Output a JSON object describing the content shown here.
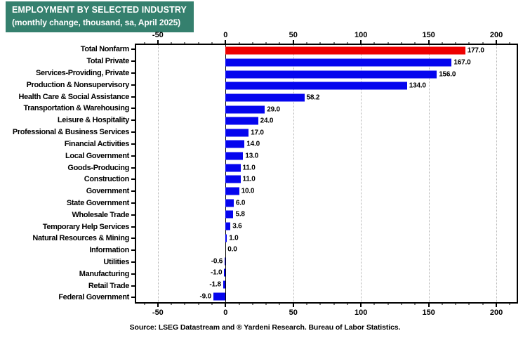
{
  "title": {
    "line1": "EMPLOYMENT BY SELECTED INDUSTRY",
    "line2": "(monthly change, thousand, sa, April 2025)",
    "bg_color": "#35806E",
    "text_color": "#FFFFFF"
  },
  "chart_data": {
    "type": "bar",
    "orientation": "horizontal",
    "title": "EMPLOYMENT BY SELECTED INDUSTRY",
    "subtitle": "(monthly change, thousand, sa, April 2025)",
    "categories": [
      "Total Nonfarm",
      "Total Private",
      "Services-Providing, Private",
      "Production & Nonsupervisory",
      "Health Care & Social Assistance",
      "Transportation & Warehousing",
      "Leisure & Hospitality",
      "Professional & Business Services",
      "Financial Activities",
      "Local Government",
      "Goods-Producing",
      "Construction",
      "Government",
      "State Government",
      "Wholesale Trade",
      "Temporary Help Services",
      "Natural Resources & Mining",
      "Information",
      "Utilities",
      "Manufacturing",
      "Retail Trade",
      "Federal Government"
    ],
    "values": [
      177.0,
      167.0,
      156.0,
      134.0,
      58.2,
      29.0,
      24.0,
      17.0,
      14.0,
      13.0,
      11.0,
      11.0,
      10.0,
      6.0,
      5.8,
      3.6,
      1.0,
      0.0,
      -0.6,
      -1.0,
      -1.8,
      -9.0
    ],
    "highlight_index": 0,
    "bar_colors": {
      "highlight": "#EE0000",
      "default": "#0505EE"
    },
    "gridline_color": "#B3B3B3",
    "x_axis": {
      "ticks": [
        -50,
        0,
        50,
        100,
        150,
        200
      ],
      "minor_step": 10,
      "range": [
        -66,
        215
      ],
      "grid": "dotted"
    },
    "legend": "none",
    "value_label_decimals": 1
  },
  "source": "Source: LSEG Datastream and ® Yardeni Research. Bureau of Labor Statistics."
}
